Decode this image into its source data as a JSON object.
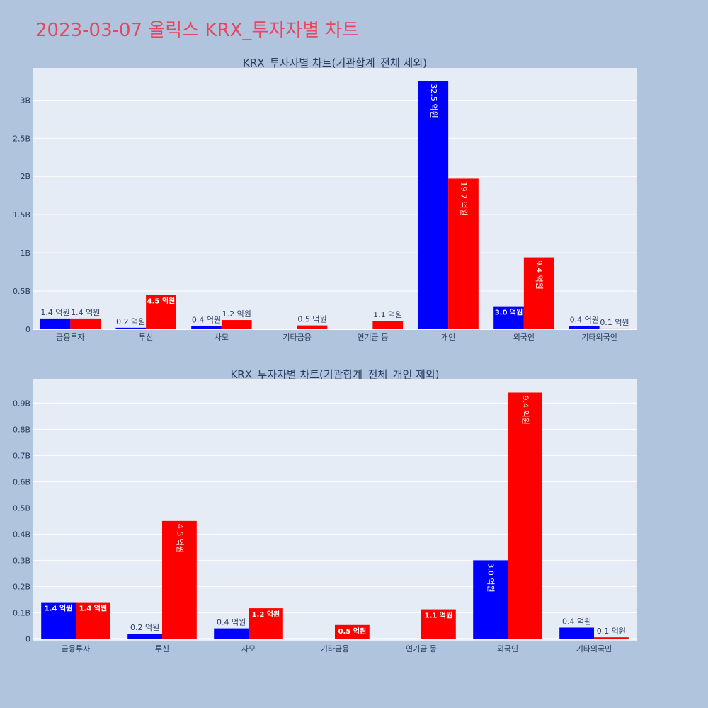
{
  "page_title": "2023-03-07 올릭스 KRX_투자자별 차트",
  "colors": {
    "series_a": "#0000ff",
    "series_b": "#ff0000",
    "plot_bg": "#e5ecf6",
    "page_bg": "#b0c4de",
    "title": "#e8455e"
  },
  "chart_data": [
    {
      "type": "bar",
      "title": "KRX_투자자별 차트(기관합계_전체 제외)",
      "categories": [
        "금융투자",
        "투신",
        "사모",
        "기타금융",
        "연기금 등",
        "개인",
        "외국인",
        "기타외국인"
      ],
      "series": [
        {
          "color": "#0000ff",
          "values": [
            140000000,
            20000000,
            40000000,
            0,
            0,
            3250000000,
            300000000,
            40000000
          ],
          "labels": [
            "1.4 억원",
            "0.2 억원",
            "0.4 억원",
            "",
            "",
            "32.5 억원",
            "3.0 억원",
            "0.4 억원"
          ]
        },
        {
          "color": "#ff0000",
          "values": [
            140000000,
            450000000,
            120000000,
            50000000,
            110000000,
            1970000000,
            940000000,
            10000000
          ],
          "labels": [
            "1.4 억원",
            "4.5 억원",
            "1.2 억원",
            "0.5 억원",
            "1.1 억원",
            "19.7 억원",
            "9.4 억원",
            "0.1 억원"
          ]
        }
      ],
      "ylim": [
        0,
        3420000000
      ],
      "yticks": [
        0,
        500000000,
        1000000000,
        1500000000,
        2000000000,
        2500000000,
        3000000000
      ],
      "ytick_labels": [
        "0",
        "0.5B",
        "1B",
        "1.5B",
        "2B",
        "2.5B",
        "3B"
      ],
      "grid": true,
      "legend": "none"
    },
    {
      "type": "bar",
      "title": "KRX_투자자별 차트(기관합계_전체_개인 제외)",
      "categories": [
        "금융투자",
        "투신",
        "사모",
        "기타금융",
        "연기금 등",
        "외국인",
        "기타외국인"
      ],
      "series": [
        {
          "color": "#0000ff",
          "values": [
            140000000,
            20000000,
            40000000,
            0,
            0,
            300000000,
            43000000
          ],
          "labels": [
            "1.4 억원",
            "0.2 억원",
            "0.4 억원",
            "",
            "",
            "3.0 억원",
            "0.4 억원"
          ]
        },
        {
          "color": "#ff0000",
          "values": [
            140000000,
            450000000,
            117000000,
            53000000,
            113000000,
            940000000,
            6000000
          ],
          "labels": [
            "1.4 억원",
            "4.5 억원",
            "1.2 억원",
            "0.5 억원",
            "1.1 억원",
            "9.4 억원",
            "0.1 억원"
          ]
        }
      ],
      "ylim": [
        -7000000,
        990000000
      ],
      "yticks": [
        0,
        100000000,
        200000000,
        300000000,
        400000000,
        500000000,
        600000000,
        700000000,
        800000000,
        900000000
      ],
      "ytick_labels": [
        "0",
        "0.1B",
        "0.2B",
        "0.3B",
        "0.4B",
        "0.5B",
        "0.6B",
        "0.7B",
        "0.8B",
        "0.9B"
      ],
      "grid": true,
      "legend": "none"
    }
  ]
}
